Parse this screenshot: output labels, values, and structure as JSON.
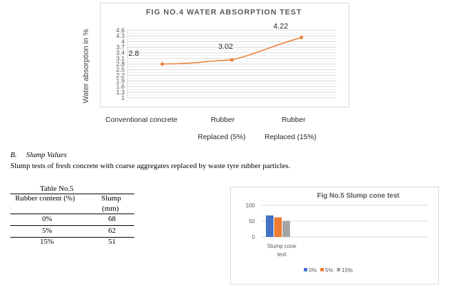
{
  "chart_data": [
    {
      "type": "line",
      "title": "FIG NO.4 WATER ABSORPTION TEST",
      "ylabel": "Water absorption in %",
      "xlabel": "",
      "categories": [
        "Conventional concrete",
        "Rubber Replaced (5%)",
        "Rubber Replaced (15%)"
      ],
      "x_tick_lines": [
        [
          "Conventional concrete"
        ],
        [
          "Rubber",
          "Replaced (5%)"
        ],
        [
          "Rubber",
          "Replaced (15%)"
        ]
      ],
      "values": [
        2.8,
        3.02,
        4.22
      ],
      "data_labels": [
        "2.8",
        "3.02",
        "4.22"
      ],
      "ylim": [
        1,
        4.6
      ],
      "yticks": [
        "4.6",
        "4.3",
        "4",
        "3.7",
        "3.4",
        "3.1",
        "2.8",
        "2.5",
        "2.2",
        "1.9",
        "1.6",
        "1.3",
        "1"
      ],
      "grid": true,
      "colors": {
        "line": "#ed7d31",
        "grid": "#d9d9d9"
      }
    },
    {
      "type": "bar",
      "title": "Fig No.5 Slump cone test",
      "categories": [
        "Slump cone test"
      ],
      "category_lines": [
        "Slump cone",
        "test"
      ],
      "series": [
        {
          "name": "0%",
          "values": [
            68
          ],
          "color": "#4472c4"
        },
        {
          "name": "5%",
          "values": [
            62
          ],
          "color": "#ed7d31"
        },
        {
          "name": "15%",
          "values": [
            51
          ],
          "color": "#a5a5a5"
        }
      ],
      "ylim": [
        0,
        100
      ],
      "yticks": [
        "100",
        "50",
        "0"
      ],
      "legend": "bottom",
      "grid": true
    }
  ],
  "section": {
    "label": "B.",
    "title": "Slump Values",
    "paragraph": "Slump tests of fresh concrete with coarse aggregates replaced by waste tyre rubber particles."
  },
  "table": {
    "title": "Table No.5",
    "headers": [
      "Rubber content (%)",
      "Slump",
      "(mm)"
    ],
    "rows": [
      [
        "0%",
        "68"
      ],
      [
        "5%",
        "62"
      ],
      [
        "15%",
        "51"
      ]
    ]
  }
}
